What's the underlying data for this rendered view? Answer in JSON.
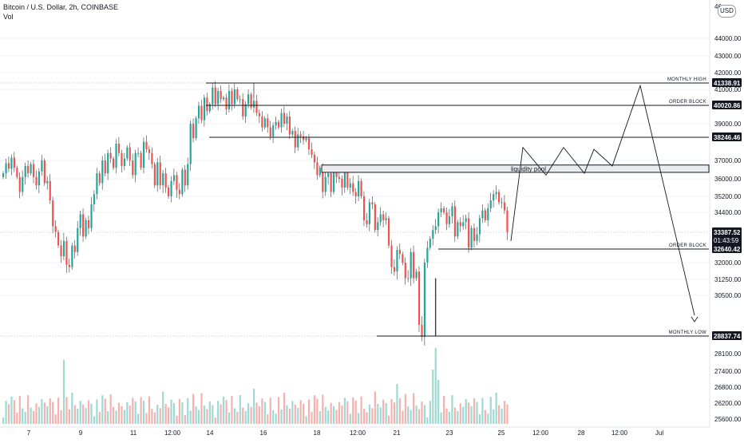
{
  "legend": {
    "title": "Bitcoin / U.S. Dollar, 2h, COINBASE",
    "volume_label": "Vol"
  },
  "scale": {
    "currency": "USD",
    "top_partial": "46",
    "marks": [
      "44000.00",
      "43000.00",
      "42000.00",
      "41000.00",
      "39000.00",
      "37000.00",
      "36000.00",
      "35200.00",
      "34400.00",
      "32000.00",
      "31250.00",
      "30500.00",
      "28100.00",
      "27400.00",
      "26800.00",
      "26200.00",
      "25600.00"
    ]
  },
  "time_labels": [
    "7",
    "9",
    "11",
    "12:00",
    "14",
    "16",
    "18",
    "12:00",
    "21",
    "23",
    "25",
    "12:00",
    "28",
    "12:00",
    "Jul"
  ],
  "levels": [
    {
      "label": "MONTHLY HIGH",
      "value": "41338.91",
      "badge": "#131722"
    },
    {
      "label": "ORDER BLOCK",
      "value": "40020.86",
      "badge": "#131722"
    },
    {
      "label": "",
      "value": "38246.46",
      "badge": "#131722"
    },
    {
      "label": "ORDER BLOCK",
      "value": "32640.42",
      "badge": "#131722"
    },
    {
      "label": "MONTHLY LOW",
      "value": "28837.74",
      "badge": "#131722"
    }
  ],
  "last_price": {
    "value": "33387.52",
    "countdown": "01:43:59",
    "badge": "#131722"
  },
  "liquidity_pool": {
    "label": "liquidity pool"
  },
  "colors": {
    "up": "#26a69a",
    "down": "#ef5350",
    "vol_up": "#9fd9d3",
    "vol_down": "#f5b1ae",
    "line": "#131722",
    "grid": "#f0f3fa"
  },
  "candles": [
    36300,
    36850,
    36550,
    37150,
    36600,
    36100,
    35400,
    36100,
    36700,
    36300,
    36800,
    36100,
    35700,
    36400,
    37000,
    35800,
    35900,
    35000,
    33700,
    33400,
    32800,
    32300,
    33000,
    31900,
    31800,
    32800,
    32500,
    33600,
    34300,
    33200,
    34000,
    33600,
    34800,
    35300,
    36300,
    35800,
    37000,
    36300,
    37400,
    37100,
    36600,
    37900,
    37400,
    36700,
    37100,
    37700,
    37000,
    36200,
    37400,
    37400,
    36600,
    38000,
    37600,
    37400,
    36800,
    35700,
    36900,
    35700,
    36300,
    35600,
    35200,
    35900,
    36200,
    35500,
    35300,
    36500,
    35700,
    36800,
    39000,
    38200,
    39300,
    40000,
    39200,
    40500,
    39700,
    40100,
    41100,
    40100,
    40900,
    40400,
    40500,
    39800,
    40900,
    40100,
    41000,
    40400,
    40400,
    39400,
    40100,
    40700,
    39900,
    40300,
    39600,
    39400,
    38800,
    39300,
    38800,
    38300,
    38900,
    39100,
    38800,
    39600,
    39000,
    39400,
    38400,
    38600,
    37700,
    38400,
    38300,
    38100,
    38200,
    37600,
    37300,
    36900,
    36200,
    36600,
    35400,
    36100,
    36300,
    35400,
    36500,
    36100,
    36000,
    35600,
    36400,
    35600,
    35800,
    35400,
    35200,
    35900,
    35200,
    34000,
    33800,
    34900,
    34800,
    33500,
    33900,
    34300,
    34000,
    34100,
    32800,
    31800,
    31600,
    32600,
    32400,
    32000,
    31300,
    31300,
    32500,
    31300,
    31600,
    29300,
    28800,
    32000,
    32700,
    33100,
    33500,
    33700,
    34400,
    34600,
    34400,
    33800,
    34200,
    34700,
    33200,
    33900,
    33700,
    33900,
    34100,
    32700,
    33600,
    33000,
    33300,
    34100,
    34500,
    34000,
    34600,
    35000,
    35300,
    35400,
    34900,
    34900,
    34500,
    33400
  ]
}
